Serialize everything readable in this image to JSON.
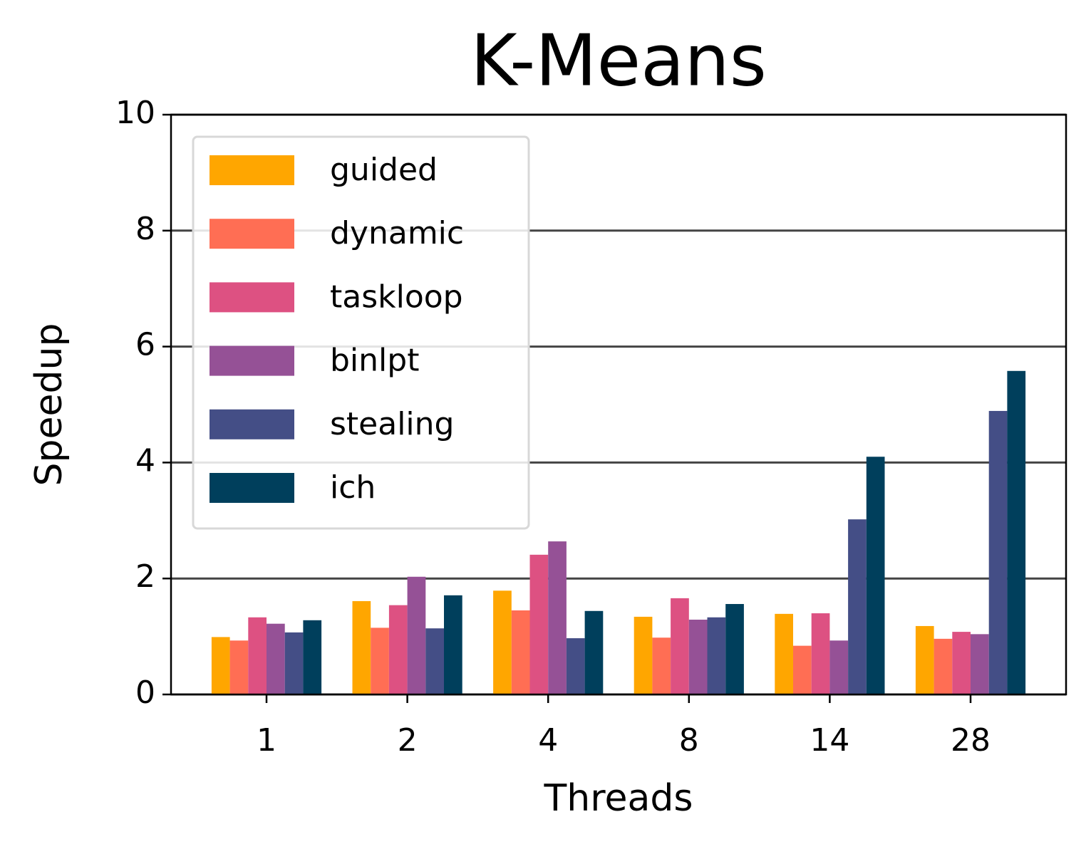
{
  "chart_data": {
    "type": "bar",
    "title": "K-Means",
    "x_label": "Threads",
    "y_label": "Speedup",
    "categories": [
      "1",
      "2",
      "4",
      "8",
      "14",
      "28"
    ],
    "series": [
      {
        "name": "guided",
        "color": "#ffa600",
        "values": [
          0.99,
          1.61,
          1.79,
          1.34,
          1.39,
          1.18
        ]
      },
      {
        "name": "dynamic",
        "color": "#ff6e54",
        "values": [
          0.93,
          1.15,
          1.45,
          0.98,
          0.84,
          0.96
        ]
      },
      {
        "name": "taskloop",
        "color": "#dd5182",
        "values": [
          1.33,
          1.54,
          2.41,
          1.66,
          1.4,
          1.08
        ]
      },
      {
        "name": "binlpt",
        "color": "#955196",
        "values": [
          1.22,
          2.03,
          2.64,
          1.29,
          0.93,
          1.04
        ]
      },
      {
        "name": "stealing",
        "color": "#444e86",
        "values": [
          1.07,
          1.14,
          0.97,
          1.33,
          3.02,
          4.89
        ]
      },
      {
        "name": "ich",
        "color": "#003f5c",
        "values": [
          1.28,
          1.71,
          1.44,
          1.56,
          4.1,
          5.58
        ]
      }
    ],
    "ylim": [
      0,
      10
    ],
    "yticks": [
      0,
      2,
      4,
      6,
      8,
      10
    ],
    "grid": true,
    "legend": "upper left"
  }
}
